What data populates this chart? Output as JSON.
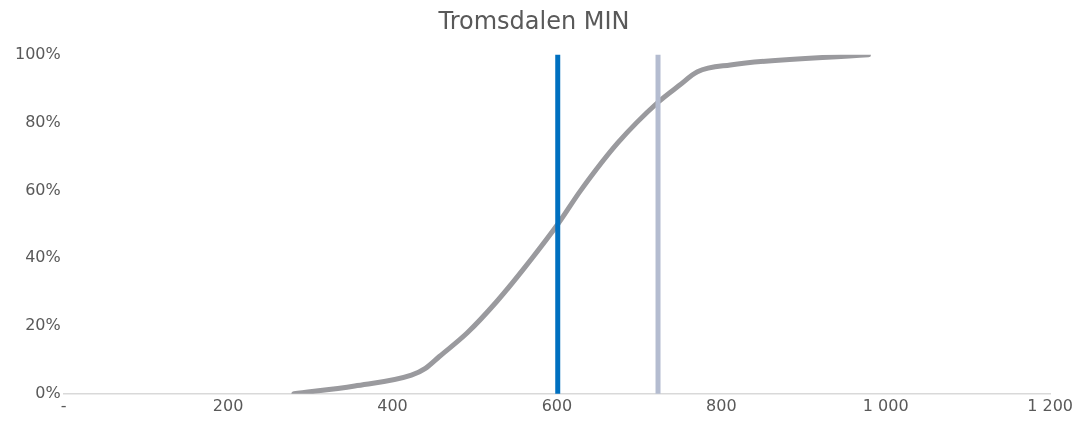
{
  "chart_data": {
    "type": "line",
    "title": "Tromsdalen MIN",
    "x": [
      280,
      354,
      423,
      440,
      457,
      491,
      526,
      560,
      601,
      629,
      674,
      723,
      749,
      771,
      811,
      979
    ],
    "series": [
      {
        "color": "#9a9a9e",
        "values": [
          0,
          2.3,
          5.5,
          7.5,
          11,
          18,
          27,
          37,
          50,
          60,
          74,
          86,
          91,
          95,
          97,
          100
        ]
      }
    ],
    "xlim": [
      0,
      1200
    ],
    "xticks": [
      {
        "value": 0,
        "label": "-"
      },
      200,
      400,
      600,
      800,
      {
        "value": 1000,
        "label": "1 000"
      },
      {
        "value": 1200,
        "label": "1 200"
      }
    ],
    "ylim": [
      0,
      100
    ],
    "yticks": [
      {
        "value": 0,
        "label": "0%"
      },
      {
        "value": 20,
        "label": "20%"
      },
      {
        "value": 40,
        "label": "40%"
      },
      {
        "value": 60,
        "label": "60%"
      },
      {
        "value": 80,
        "label": "80%"
      },
      {
        "value": 100,
        "label": "100%"
      }
    ],
    "ref_lines": [
      {
        "axis": "x",
        "value": 601,
        "color": "#0070c0"
      },
      {
        "axis": "x",
        "value": 723,
        "color": "#b4bcd0"
      }
    ],
    "grid": false,
    "legend": false,
    "marker": "none",
    "line_style": "solid"
  }
}
